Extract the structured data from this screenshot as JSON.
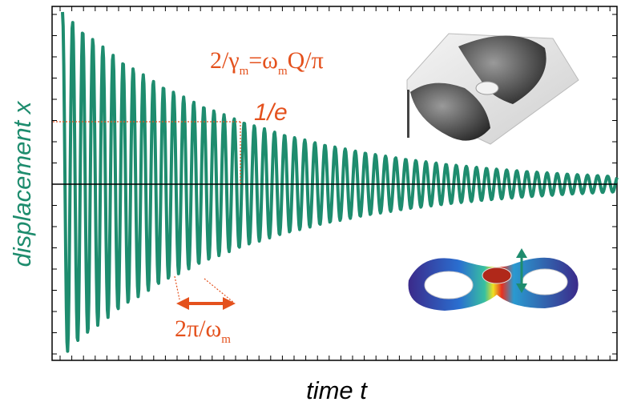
{
  "figure": {
    "y_label": "displacement x",
    "x_label": "time t",
    "annotations": {
      "decay": [
        "2/γ",
        "m",
        "=ω",
        "m",
        "Q/π"
      ],
      "one_over_e": "1/e",
      "period": [
        "2π/ω",
        "m"
      ]
    }
  }
}
